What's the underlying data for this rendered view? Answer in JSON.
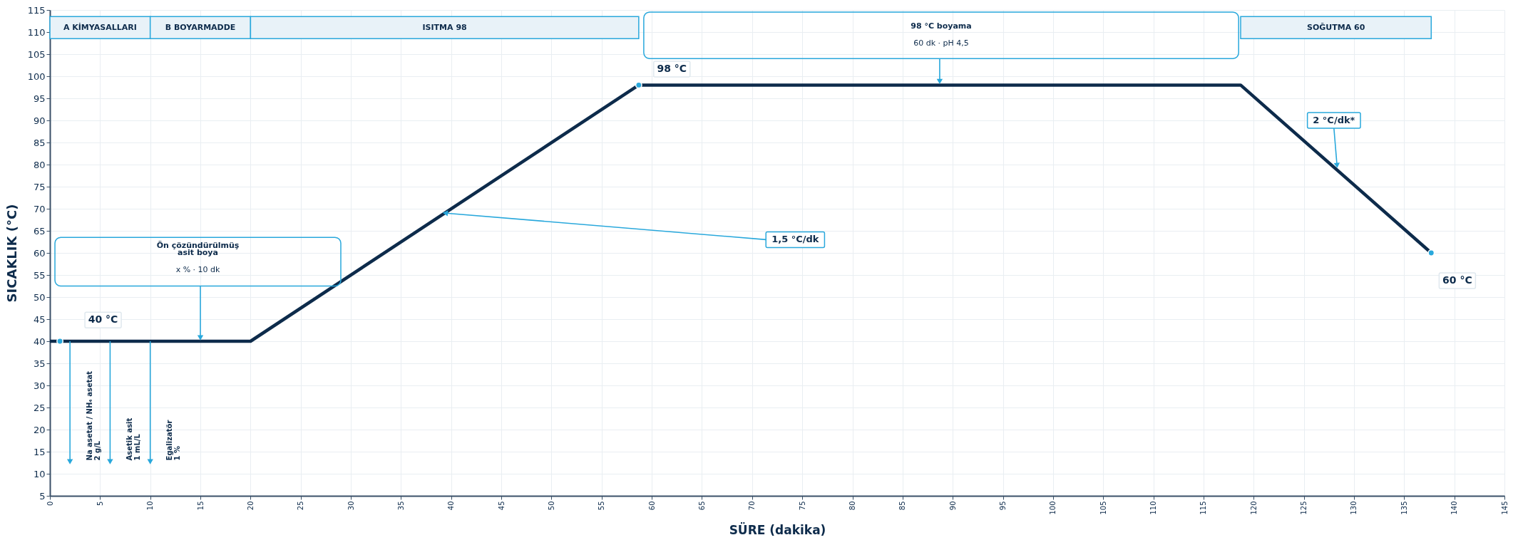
{
  "chart_data": {
    "type": "line",
    "xlabel": "SÜRE (dakika)",
    "ylabel": "SICAKLIK (°C)",
    "x": [
      0,
      20,
      58.7,
      118.7,
      137.7
    ],
    "series": [
      {
        "color": "#0d2b4b",
        "values": [
          40,
          40,
          98,
          98,
          60
        ]
      },
      {
        "type": "scatter",
        "marker": "circle",
        "color": "#29a8dc",
        "x": [
          1,
          58.7,
          137.7
        ],
        "values": [
          40,
          98,
          60
        ]
      }
    ],
    "xlim": [
      0,
      145
    ],
    "xticks": [
      0,
      5,
      10,
      15,
      20,
      25,
      30,
      35,
      40,
      45,
      50,
      55,
      60,
      65,
      70,
      75,
      80,
      85,
      90,
      95,
      100,
      105,
      110,
      115,
      120,
      125,
      130,
      135,
      140,
      145
    ],
    "ylim": [
      5,
      115
    ],
    "yticks": [
      5,
      10,
      15,
      20,
      25,
      30,
      35,
      40,
      45,
      50,
      55,
      60,
      65,
      70,
      75,
      80,
      85,
      90,
      95,
      100,
      105,
      110,
      115
    ],
    "grid": true,
    "line_style": "solid",
    "bands": [
      {
        "axis": "x",
        "from": 0,
        "to": 10,
        "label": "A KİMYASALLARI",
        "color": "#e8f2f8"
      },
      {
        "axis": "x",
        "from": 10,
        "to": 20,
        "label": "B BOYARMADDE",
        "color": "#e8f2f8"
      },
      {
        "axis": "x",
        "from": 20,
        "to": 58.7,
        "label": "ISITMA 98",
        "color": "#e8f2f8"
      },
      {
        "axis": "x",
        "from": 118.7,
        "to": 137.7,
        "label": "SOĞUTMA 60",
        "color": "#e8f2f8"
      }
    ],
    "annotations": [
      "40 °C",
      "98 °C",
      "60 °C",
      "Ön çözündürülmüş\nasit boya",
      "x % · 10 dk",
      "98 °C boyama",
      "60 dk · pH 4,5",
      {
        "text": "1,5 °C/dk",
        "x": 39.5,
        "y": 69
      },
      {
        "text": "2 °C/dk*",
        "x": 128.3,
        "y": 80
      },
      "Na asetat / NH₄ asetat\n2 g/L",
      "Asetik asit\n1 mL/L",
      "Egalizatör\n1 %"
    ]
  }
}
